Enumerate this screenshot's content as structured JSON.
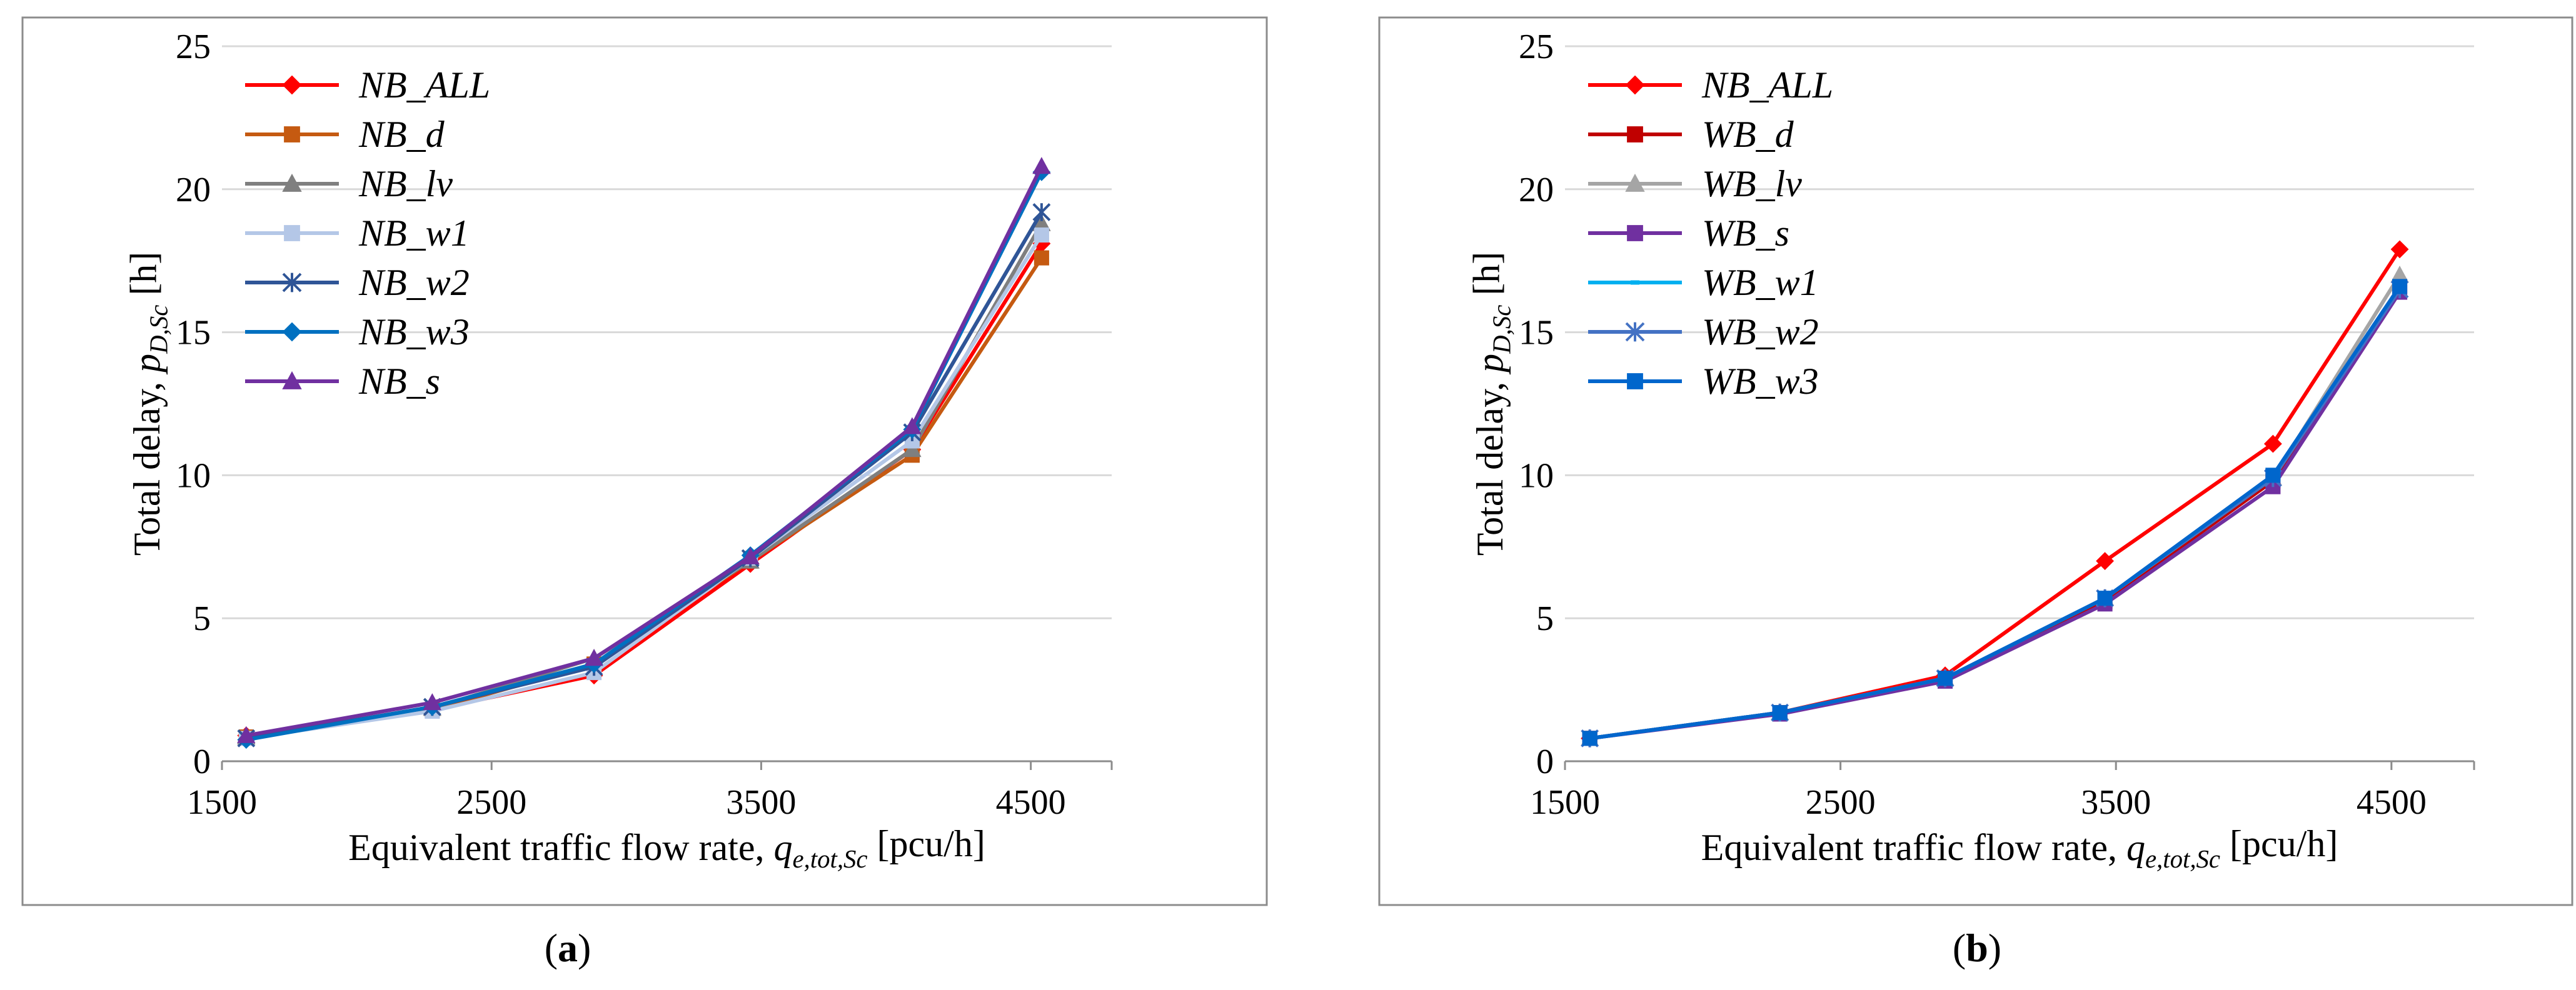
{
  "chart_data": [
    {
      "type": "line",
      "panel_label": "a",
      "title": "",
      "xlabel": {
        "text": "Equivalent traffic flow rate, ",
        "var": "q",
        "sub": "e,tot,Sc",
        "unit": " [pcu/h]"
      },
      "ylabel": {
        "text": "Total delay, ",
        "var": "p",
        "sub": "D,Sc",
        "unit": " [h]"
      },
      "xlim": [
        1500,
        4800
      ],
      "ylim": [
        0,
        25
      ],
      "x_ticks": [
        1500,
        2500,
        3500,
        4500
      ],
      "y_ticks": [
        0,
        5,
        10,
        15,
        20,
        25
      ],
      "grid": "horizontal",
      "legend_position": "top-left",
      "x": [
        1590,
        2280,
        2880,
        3460,
        4060,
        4540
      ],
      "series": [
        {
          "name": "NB_ALL",
          "color": "#ff0000",
          "marker": "diamond",
          "values": [
            0.9,
            1.8,
            3.0,
            6.9,
            10.9,
            18.1
          ]
        },
        {
          "name": "NB_d",
          "color": "#c55a11",
          "marker": "square",
          "values": [
            0.85,
            1.8,
            3.4,
            7.0,
            10.7,
            17.6
          ]
        },
        {
          "name": "NB_lv",
          "color": "#7f7f7f",
          "marker": "triangle",
          "values": [
            0.85,
            1.85,
            3.6,
            7.0,
            10.9,
            18.8
          ]
        },
        {
          "name": "NB_w1",
          "color": "#b4c7e7",
          "marker": "square",
          "values": [
            0.8,
            1.75,
            3.1,
            7.1,
            11.2,
            18.4
          ]
        },
        {
          "name": "NB_w2",
          "color": "#2f5597",
          "marker": "star",
          "values": [
            0.8,
            1.9,
            3.3,
            7.1,
            11.5,
            19.2
          ]
        },
        {
          "name": "NB_w3",
          "color": "#0070c0",
          "marker": "diamond",
          "values": [
            0.75,
            1.9,
            3.4,
            7.2,
            11.6,
            20.6
          ]
        },
        {
          "name": "NB_s",
          "color": "#7030a0",
          "marker": "triangle",
          "values": [
            0.9,
            2.05,
            3.6,
            7.15,
            11.7,
            20.8
          ]
        }
      ]
    },
    {
      "type": "line",
      "panel_label": "b",
      "title": "",
      "xlabel": {
        "text": "Equivalent traffic flow rate, ",
        "var": "q",
        "sub": "e,tot,Sc",
        "unit": " [pcu/h]"
      },
      "ylabel": {
        "text": "Total delay, ",
        "var": "p",
        "sub": "D,Sc",
        "unit": " [h]"
      },
      "xlim": [
        1500,
        4800
      ],
      "ylim": [
        0,
        25
      ],
      "x_ticks": [
        1500,
        2500,
        3500,
        4500
      ],
      "y_ticks": [
        0,
        5,
        10,
        15,
        20,
        25
      ],
      "grid": "horizontal",
      "legend_position": "top-left",
      "x": [
        1590,
        2280,
        2880,
        3460,
        4070,
        4530
      ],
      "series": [
        {
          "name": "NB_ALL",
          "color": "#ff0000",
          "marker": "diamond",
          "values": [
            0.8,
            1.7,
            3.0,
            7.0,
            11.1,
            17.9
          ]
        },
        {
          "name": "WB_d",
          "color": "#c00000",
          "marker": "square",
          "values": [
            0.8,
            1.7,
            2.9,
            5.6,
            9.8,
            16.6
          ]
        },
        {
          "name": "WB_lv",
          "color": "#a5a5a5",
          "marker": "triangle",
          "values": [
            0.8,
            1.7,
            2.9,
            5.7,
            9.9,
            17.0
          ]
        },
        {
          "name": "WB_s",
          "color": "#7030a0",
          "marker": "square",
          "values": [
            0.8,
            1.65,
            2.8,
            5.5,
            9.6,
            16.4
          ]
        },
        {
          "name": "WB_w1",
          "color": "#00b0f0",
          "marker": "dash",
          "values": [
            0.8,
            1.7,
            2.9,
            5.7,
            9.9,
            16.5
          ]
        },
        {
          "name": "WB_w2",
          "color": "#4472c4",
          "marker": "star",
          "values": [
            0.8,
            1.7,
            2.9,
            5.7,
            9.9,
            16.5
          ]
        },
        {
          "name": "WB_w3",
          "color": "#0066cc",
          "marker": "square",
          "values": [
            0.8,
            1.7,
            2.9,
            5.7,
            10.0,
            16.6
          ]
        }
      ]
    }
  ]
}
